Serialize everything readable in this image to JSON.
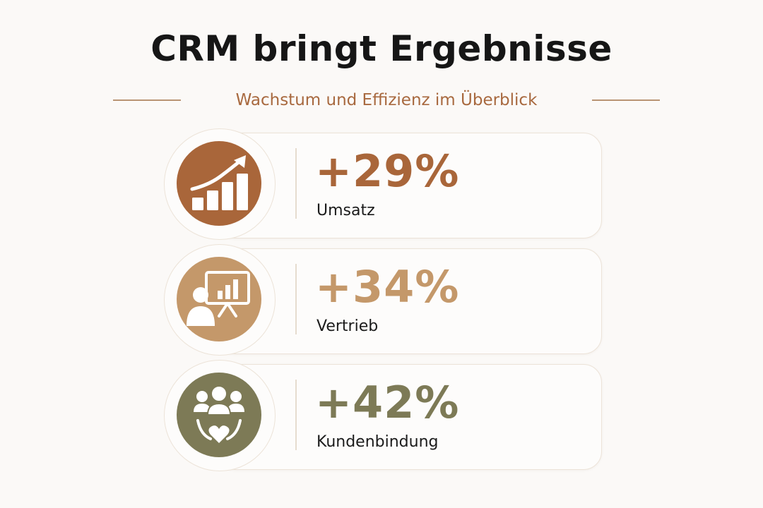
{
  "header": {
    "title": "CRM bringt Ergebnisse",
    "subtitle": "Wachstum und Effizienz im Überblick"
  },
  "colors": {
    "background": "#fbf9f7",
    "title": "#161616",
    "accent": "#a8693f",
    "revenue": "#a9663a",
    "sales": "#c4986a",
    "retention": "#7d7a56"
  },
  "metrics": [
    {
      "value": "+29%",
      "label": "Umsatz",
      "icon": "growth-chart-icon",
      "color": "#a9663a"
    },
    {
      "value": "+34%",
      "label": "Vertrieb",
      "icon": "presentation-icon",
      "color": "#c4986a"
    },
    {
      "value": "+42%",
      "label": "Kundenbindung",
      "icon": "customer-loyalty-icon",
      "color": "#7d7a56"
    }
  ]
}
